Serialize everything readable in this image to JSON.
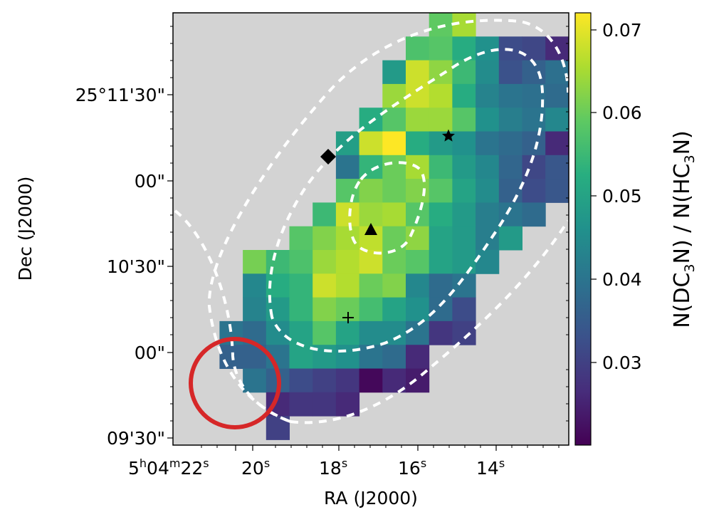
{
  "chart_data": {
    "type": "heatmap",
    "xlabel": "RA (J2000)",
    "ylabel": "Dec (J2000)",
    "colorbar_label": "N(DC3N) / N(HC3N)",
    "x_ticks": [
      "5h04m22s",
      "20s",
      "18s",
      "16s",
      "14s"
    ],
    "y_ticks": [
      "25°11'30\"",
      "00\"",
      "10'30\"",
      "00\"",
      "09'30\""
    ],
    "colorbar_ticks": [
      "0.03",
      "0.04",
      "0.05",
      "0.06",
      "0.07"
    ],
    "colorbar_range": [
      0.02,
      0.072
    ],
    "colormap": "viridis",
    "background_color": "#d3d3d3",
    "grid": false,
    "rows": [
      [
        null,
        null,
        null,
        null,
        null,
        null,
        null,
        null,
        null,
        null,
        null,
        0.059,
        0.065,
        null,
        null,
        null,
        null
      ],
      [
        null,
        null,
        null,
        null,
        null,
        null,
        null,
        null,
        null,
        null,
        0.057,
        0.058,
        0.052,
        0.046,
        0.032,
        0.031,
        0.026
      ],
      [
        null,
        null,
        null,
        null,
        null,
        null,
        null,
        null,
        null,
        0.048,
        0.068,
        0.063,
        0.055,
        0.045,
        0.033,
        0.036,
        0.039
      ],
      [
        null,
        null,
        null,
        null,
        null,
        null,
        null,
        null,
        null,
        0.064,
        0.068,
        0.066,
        0.052,
        0.043,
        0.04,
        0.039,
        0.038
      ],
      [
        null,
        null,
        null,
        null,
        null,
        null,
        null,
        null,
        0.052,
        0.058,
        0.064,
        0.064,
        0.058,
        0.046,
        0.042,
        0.04,
        0.044
      ],
      [
        null,
        null,
        null,
        null,
        null,
        null,
        null,
        0.049,
        0.068,
        0.072,
        0.052,
        0.048,
        0.046,
        0.04,
        0.038,
        0.036,
        0.026
      ],
      [
        null,
        null,
        null,
        null,
        null,
        null,
        null,
        0.04,
        0.054,
        0.06,
        0.065,
        0.055,
        0.048,
        0.044,
        0.037,
        0.031,
        0.034
      ],
      [
        null,
        null,
        null,
        null,
        null,
        null,
        null,
        0.058,
        0.062,
        0.06,
        0.062,
        0.058,
        0.05,
        0.045,
        0.036,
        0.032,
        0.034
      ],
      [
        null,
        null,
        null,
        null,
        null,
        null,
        0.055,
        0.068,
        0.064,
        0.065,
        0.058,
        0.052,
        0.048,
        0.042,
        0.04,
        0.038,
        null
      ],
      [
        null,
        null,
        null,
        null,
        null,
        0.058,
        0.062,
        0.065,
        0.067,
        0.06,
        0.063,
        0.05,
        0.048,
        0.042,
        0.048,
        null,
        null
      ],
      [
        null,
        null,
        null,
        0.061,
        0.055,
        0.057,
        0.064,
        0.066,
        0.068,
        0.06,
        0.058,
        0.05,
        0.048,
        0.044,
        null,
        null,
        null
      ],
      [
        null,
        null,
        null,
        0.044,
        0.052,
        0.054,
        0.068,
        0.066,
        0.06,
        0.062,
        0.044,
        0.038,
        0.04,
        null,
        null,
        null,
        null
      ],
      [
        null,
        null,
        null,
        0.043,
        0.048,
        0.054,
        0.062,
        0.06,
        0.056,
        0.05,
        0.046,
        0.038,
        0.032,
        null,
        null,
        null,
        null
      ],
      [
        null,
        null,
        0.04,
        0.038,
        0.045,
        0.05,
        0.058,
        0.05,
        0.045,
        0.045,
        0.04,
        0.028,
        0.03,
        null,
        null,
        null,
        null
      ],
      [
        null,
        null,
        0.036,
        0.036,
        0.04,
        0.05,
        0.048,
        0.046,
        0.04,
        0.038,
        0.026,
        null,
        null,
        null,
        null,
        null,
        null
      ],
      [
        null,
        null,
        null,
        0.04,
        0.036,
        0.032,
        0.03,
        0.028,
        0.021,
        0.026,
        0.024,
        null,
        null,
        null,
        null,
        null,
        null
      ],
      [
        null,
        null,
        null,
        null,
        0.026,
        0.028,
        0.028,
        0.026,
        null,
        null,
        null,
        null,
        null,
        null,
        null,
        null,
        null
      ],
      [
        null,
        null,
        null,
        null,
        0.03,
        null,
        null,
        null,
        null,
        null,
        null,
        null,
        null,
        null,
        null,
        null,
        null
      ]
    ],
    "markers": [
      {
        "shape": "diamond",
        "ra": "18.35s",
        "dec": "11'06\""
      },
      {
        "shape": "star",
        "ra": "15.2s",
        "dec": "11'14\""
      },
      {
        "shape": "triangle",
        "ra": "17.2s",
        "dec": "10'45\""
      },
      {
        "shape": "plus",
        "ra": "17.8s",
        "dec": "10'11\""
      }
    ],
    "beam": {
      "color": "#d62728"
    },
    "contours": {
      "color": "#ffffff",
      "style": "dashed"
    }
  }
}
